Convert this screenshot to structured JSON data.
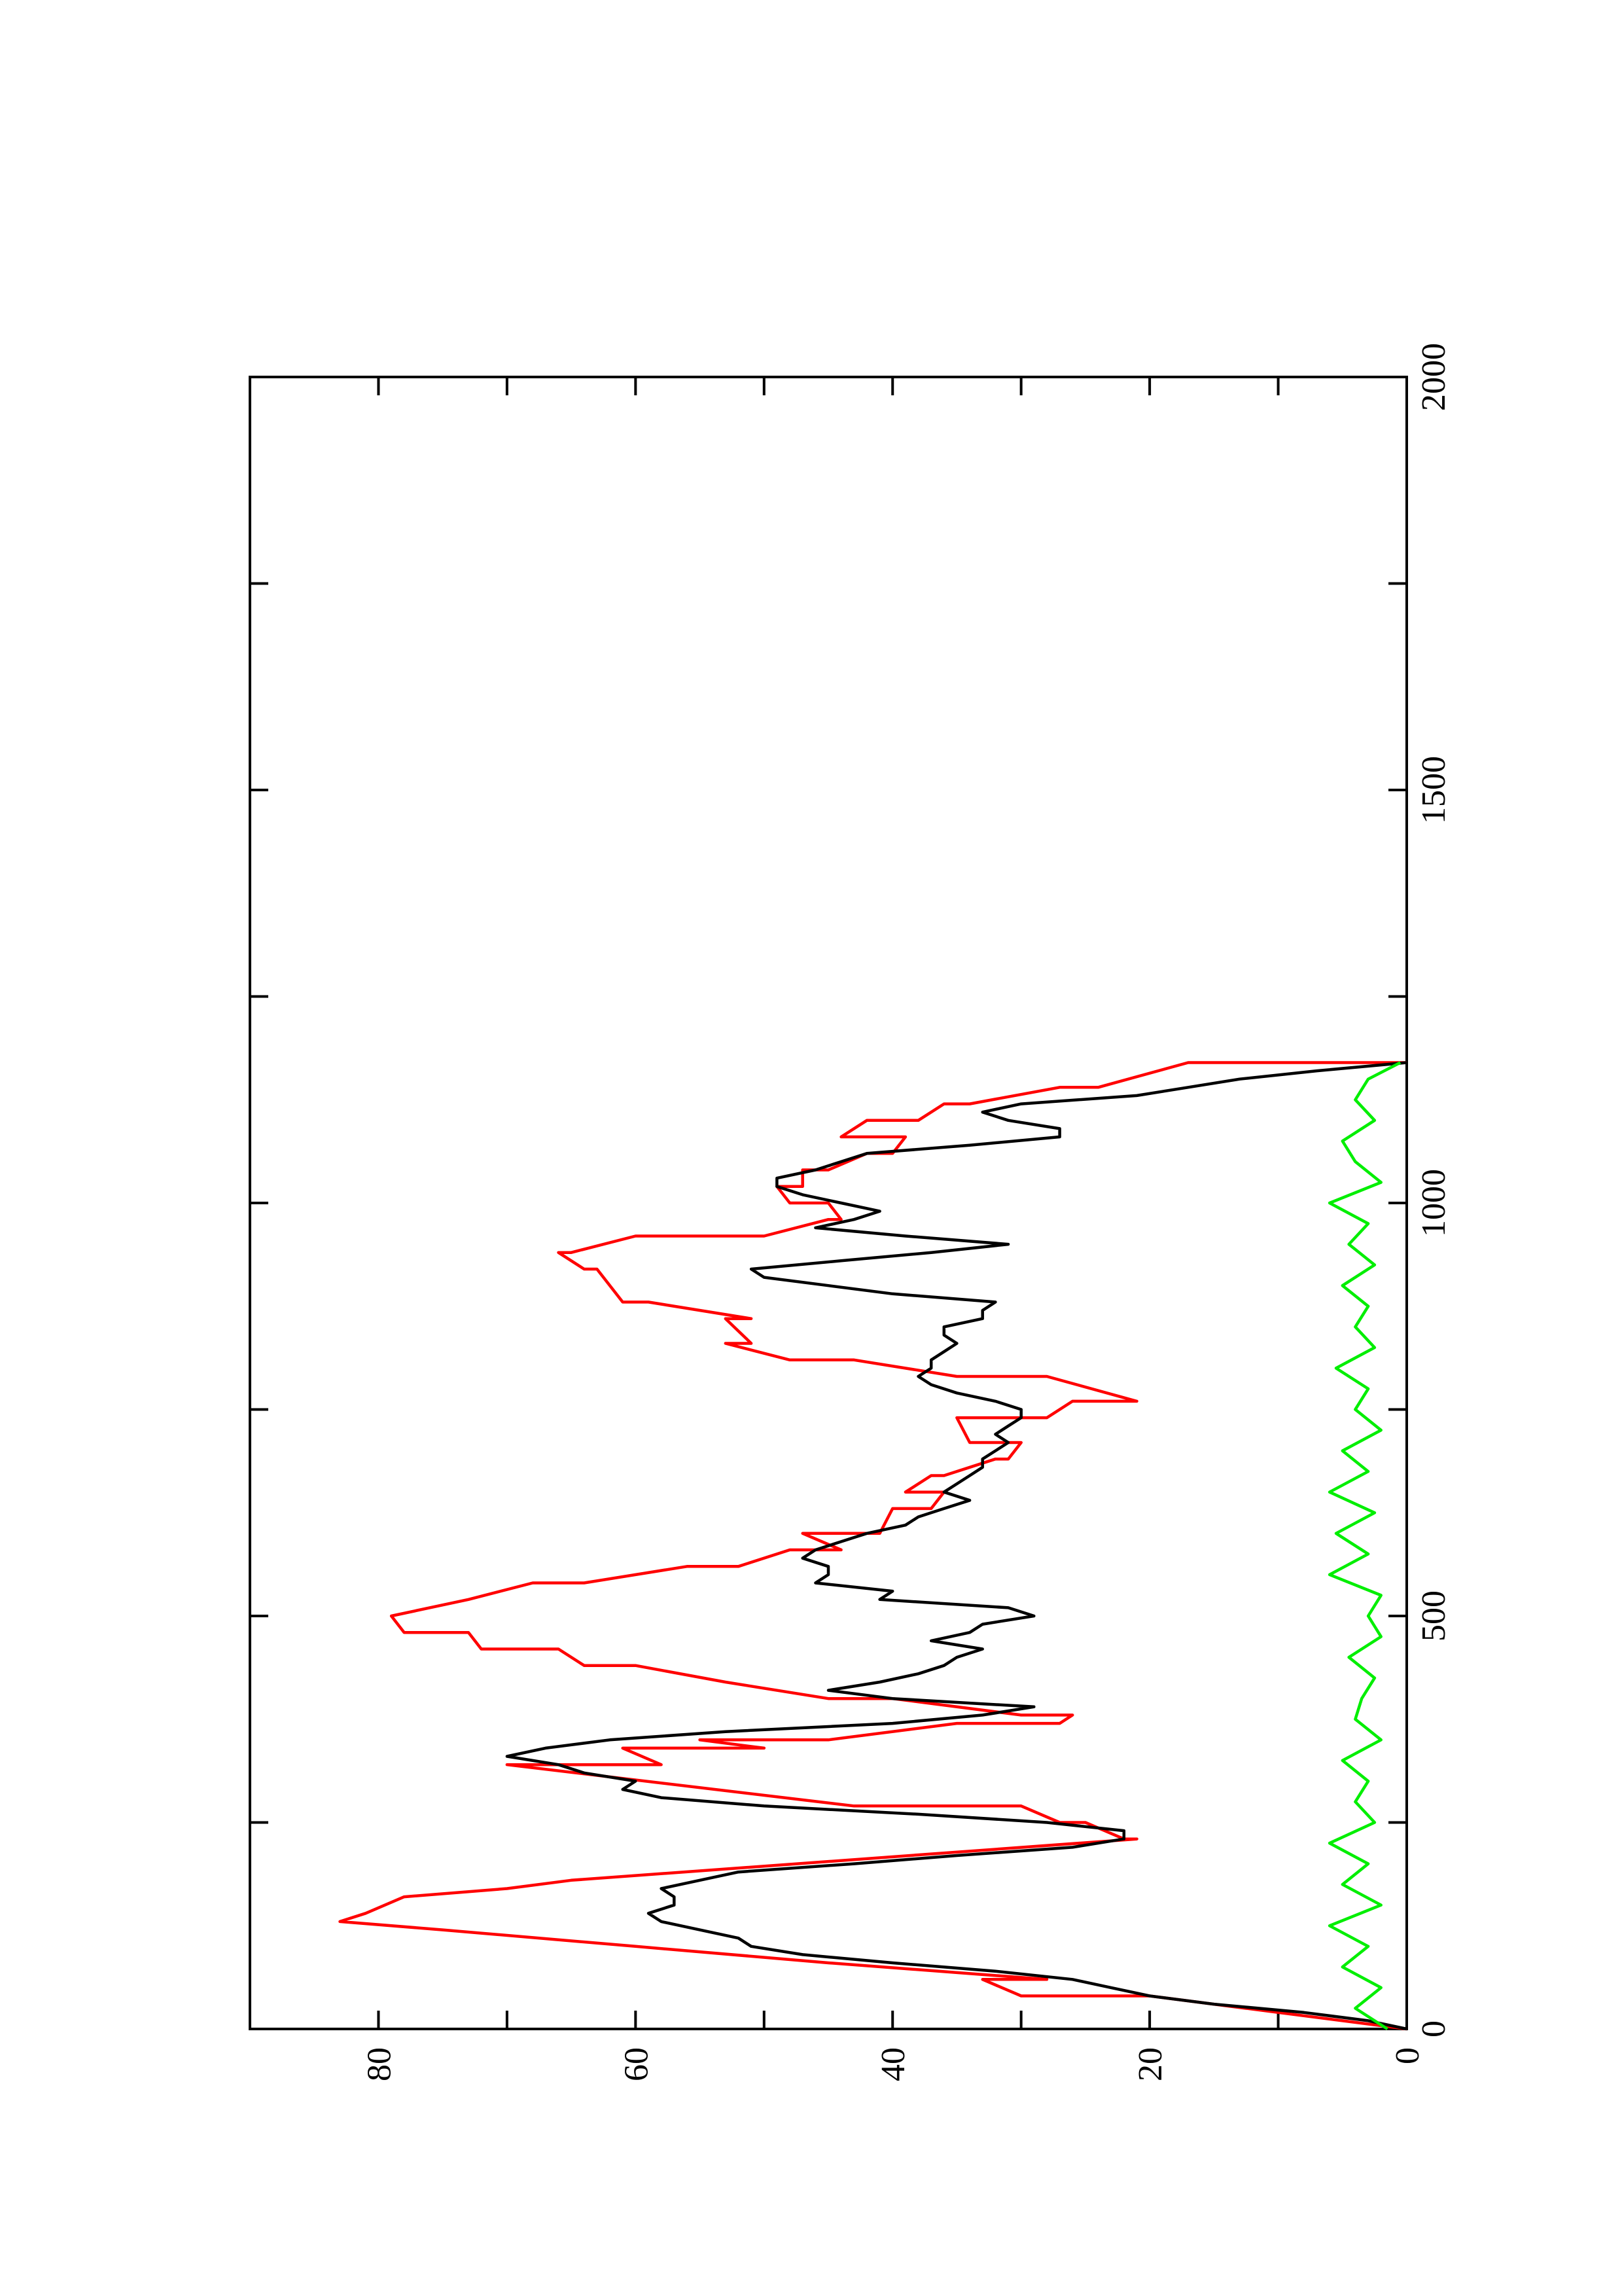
{
  "chart_data": {
    "type": "line",
    "orientation": "rotated 90 degrees counter-clockwise (x axis runs bottom-to-top along the right edge, y axis runs right-to-left along the bottom edge)",
    "title": "",
    "xlabel": "",
    "ylabel": "",
    "xlim": [
      0,
      2000
    ],
    "ylim": [
      0,
      90
    ],
    "xticks": [
      0,
      500,
      1000,
      1500,
      2000
    ],
    "xtick_labels": [
      "0",
      "500",
      "1000",
      "1500",
      "2000"
    ],
    "yticks": [
      0,
      20,
      40,
      60,
      80
    ],
    "ytick_labels": [
      "0",
      "20",
      "40",
      "60",
      "80"
    ],
    "grid": false,
    "legend": "none",
    "series": [
      {
        "color": "#ff0000",
        "x": [
          0,
          20,
          40,
          40,
          60,
          60,
          80,
          100,
          120,
          130,
          140,
          160,
          170,
          180,
          230,
          230,
          250,
          250,
          270,
          270,
          320,
          320,
          340,
          340,
          350,
          350,
          370,
          370,
          380,
          380,
          400,
          400,
          420,
          440,
          440,
          460,
          460,
          480,
          480,
          500,
          500,
          520,
          520,
          540,
          540,
          560,
          560,
          580,
          580,
          600,
          600,
          630,
          630,
          650,
          650,
          670,
          670,
          690,
          690,
          710,
          710,
          740,
          740,
          760,
          760,
          790,
          790,
          810,
          810,
          830,
          830,
          860,
          860,
          880,
          880,
          920,
          920,
          940,
          940,
          960,
          960,
          980,
          980,
          1000,
          1000,
          1020,
          1020,
          1040,
          1040,
          1060,
          1060,
          1080,
          1080,
          1100,
          1100,
          1120,
          1120,
          1140,
          1140,
          1170,
          1170
        ],
        "y": [
          0,
          10,
          20,
          30,
          33,
          28,
          45,
          60,
          75,
          83,
          81,
          78,
          70,
          65,
          21,
          22,
          25,
          27,
          30,
          43,
          70,
          58,
          61,
          50,
          55,
          45,
          35,
          27,
          26,
          30,
          40,
          45,
          53,
          60,
          64,
          66,
          72,
          73,
          78,
          79,
          79,
          73,
          73,
          68,
          64,
          56,
          52,
          48,
          44,
          47,
          41,
          40,
          37,
          36,
          39,
          37,
          36,
          32,
          31,
          30,
          34,
          35,
          28,
          26,
          21,
          28,
          35,
          43,
          48,
          53,
          51,
          53,
          51,
          59,
          61,
          63,
          64,
          66,
          65,
          60,
          50,
          45,
          44,
          45,
          48,
          49,
          47,
          47,
          45,
          42,
          40,
          39,
          44,
          42,
          38,
          36,
          34,
          27,
          24,
          17,
          0
        ]
      },
      {
        "color": "#000000",
        "x": [
          0,
          10,
          20,
          30,
          40,
          50,
          60,
          70,
          80,
          90,
          100,
          110,
          120,
          130,
          140,
          150,
          160,
          170,
          180,
          190,
          200,
          210,
          220,
          230,
          240,
          250,
          260,
          270,
          280,
          290,
          300,
          310,
          320,
          330,
          340,
          350,
          360,
          370,
          380,
          390,
          400,
          410,
          420,
          430,
          440,
          450,
          460,
          470,
          480,
          490,
          500,
          510,
          520,
          530,
          540,
          550,
          560,
          570,
          580,
          590,
          600,
          610,
          620,
          630,
          640,
          650,
          660,
          670,
          680,
          690,
          700,
          710,
          720,
          730,
          740,
          750,
          760,
          770,
          780,
          790,
          800,
          810,
          820,
          830,
          840,
          850,
          860,
          870,
          880,
          890,
          900,
          910,
          920,
          930,
          940,
          950,
          960,
          970,
          980,
          990,
          1000,
          1010,
          1020,
          1030,
          1040,
          1050,
          1060,
          1070,
          1080,
          1090,
          1100,
          1110,
          1120,
          1130,
          1140,
          1150,
          1160,
          1170
        ],
        "y": [
          0,
          3,
          8,
          15,
          20,
          23,
          26,
          32,
          40,
          47,
          51,
          52,
          55,
          58,
          59,
          57,
          57,
          58,
          55,
          52,
          43,
          35,
          26,
          22,
          22,
          28,
          38,
          50,
          58,
          61,
          60,
          64,
          66,
          70,
          67,
          62,
          53,
          40,
          33,
          29,
          40,
          45,
          41,
          38,
          36,
          35,
          33,
          37,
          34,
          33,
          29,
          31,
          41,
          40,
          46,
          45,
          45,
          47,
          46,
          44,
          42,
          39,
          38,
          36,
          34,
          36,
          35,
          34,
          33,
          33,
          32,
          31,
          32,
          31,
          30,
          30,
          32,
          35,
          37,
          38,
          37,
          37,
          36,
          35,
          36,
          36,
          33,
          33,
          32,
          40,
          45,
          50,
          51,
          44,
          37,
          31,
          39,
          46,
          43,
          41,
          44,
          47,
          49,
          49,
          46,
          44,
          42,
          34,
          27,
          27,
          31,
          33,
          30,
          21,
          17,
          13,
          7,
          0
        ]
      },
      {
        "color": "#00ee00",
        "x": [
          0,
          25,
          50,
          75,
          100,
          125,
          150,
          175,
          200,
          225,
          250,
          275,
          300,
          325,
          350,
          375,
          400,
          425,
          450,
          475,
          500,
          525,
          550,
          575,
          600,
          625,
          650,
          675,
          700,
          725,
          750,
          775,
          800,
          825,
          850,
          875,
          900,
          925,
          950,
          975,
          1000,
          1025,
          1050,
          1075,
          1100,
          1125,
          1150,
          1170
        ],
        "y": [
          1.5,
          4,
          2,
          5,
          3,
          6,
          2,
          5,
          3,
          6,
          2.5,
          4,
          3,
          5,
          2,
          4,
          3.5,
          2.5,
          4.5,
          2,
          3,
          2,
          6,
          3,
          5.5,
          2.5,
          6,
          3,
          5,
          2,
          4,
          3,
          5.5,
          2.5,
          4,
          3,
          5,
          2.5,
          4.5,
          3,
          6,
          2,
          4,
          5,
          2.5,
          4,
          3,
          0.5
        ]
      }
    ]
  }
}
